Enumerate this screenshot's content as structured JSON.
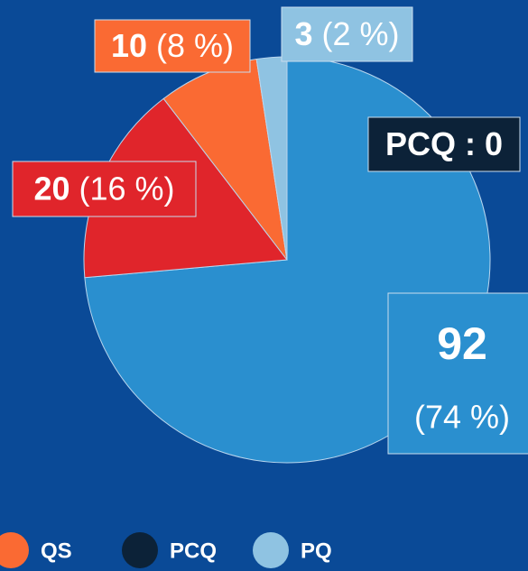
{
  "chart_data": {
    "type": "pie",
    "categories": [
      null,
      null,
      "QS",
      "PCQ",
      "PQ"
    ],
    "values": [
      92,
      20,
      10,
      0,
      3
    ],
    "value_labels": [
      "92",
      "20",
      "10",
      "PCQ : 0",
      "3"
    ],
    "percents": [
      74,
      16,
      8,
      null,
      2
    ],
    "percent_labels": [
      "(74 %)",
      "(16 %)",
      "(8 %)",
      null,
      "(2 %)"
    ],
    "colors": [
      "#2a8fcf",
      "#e0252b",
      "#fa6a33",
      "#0c2238",
      "#8fc3e2"
    ],
    "background": "#0a4a97"
  }
}
